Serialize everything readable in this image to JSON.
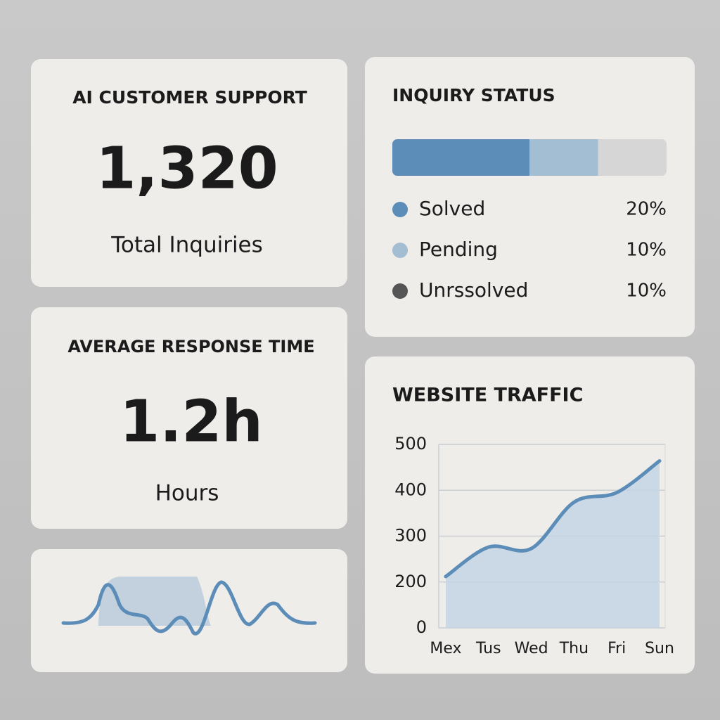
{
  "support": {
    "title": "AI CUSTOMER SUPPORT",
    "value": "1,320",
    "label": "Total Inquiries"
  },
  "response": {
    "title": "AVERAGE RESPONSE TIME",
    "value": "1.2h",
    "label": "Hours"
  },
  "chart_data": [
    {
      "type": "bar",
      "title": "INQUIRY STATUS",
      "stacked": true,
      "orientation": "horizontal",
      "xlim": [
        0,
        40
      ],
      "series": [
        {
          "name": "Solved",
          "color": "#5b8db8",
          "segment_color": "#5b8db8",
          "values": [
            20
          ],
          "value_labels": [
            "20%"
          ]
        },
        {
          "name": "Pending",
          "color": "#a3bdd3",
          "segment_color": "#a3bdd3",
          "values": [
            10
          ],
          "value_labels": [
            "10%"
          ]
        },
        {
          "name": "Unrssolved",
          "color": "#555555",
          "segment_color": "#d6d6d6",
          "values": [
            10
          ],
          "value_labels": [
            "10%"
          ]
        }
      ]
    },
    {
      "type": "line",
      "title": "WEBSITE TRAFFIC",
      "categories": [
        "Mex",
        "Tus",
        "Wed",
        "Thu",
        "Fri",
        "Sun"
      ],
      "values": [
        212,
        276,
        273,
        374,
        395,
        464
      ],
      "color": "#5b8db8",
      "area": true,
      "area_color": "#c3d5e4",
      "ylim": [
        100,
        500
      ],
      "yticks": [
        {
          "value": 100,
          "label": "0"
        },
        200,
        300,
        400,
        500
      ],
      "grid": true
    }
  ]
}
